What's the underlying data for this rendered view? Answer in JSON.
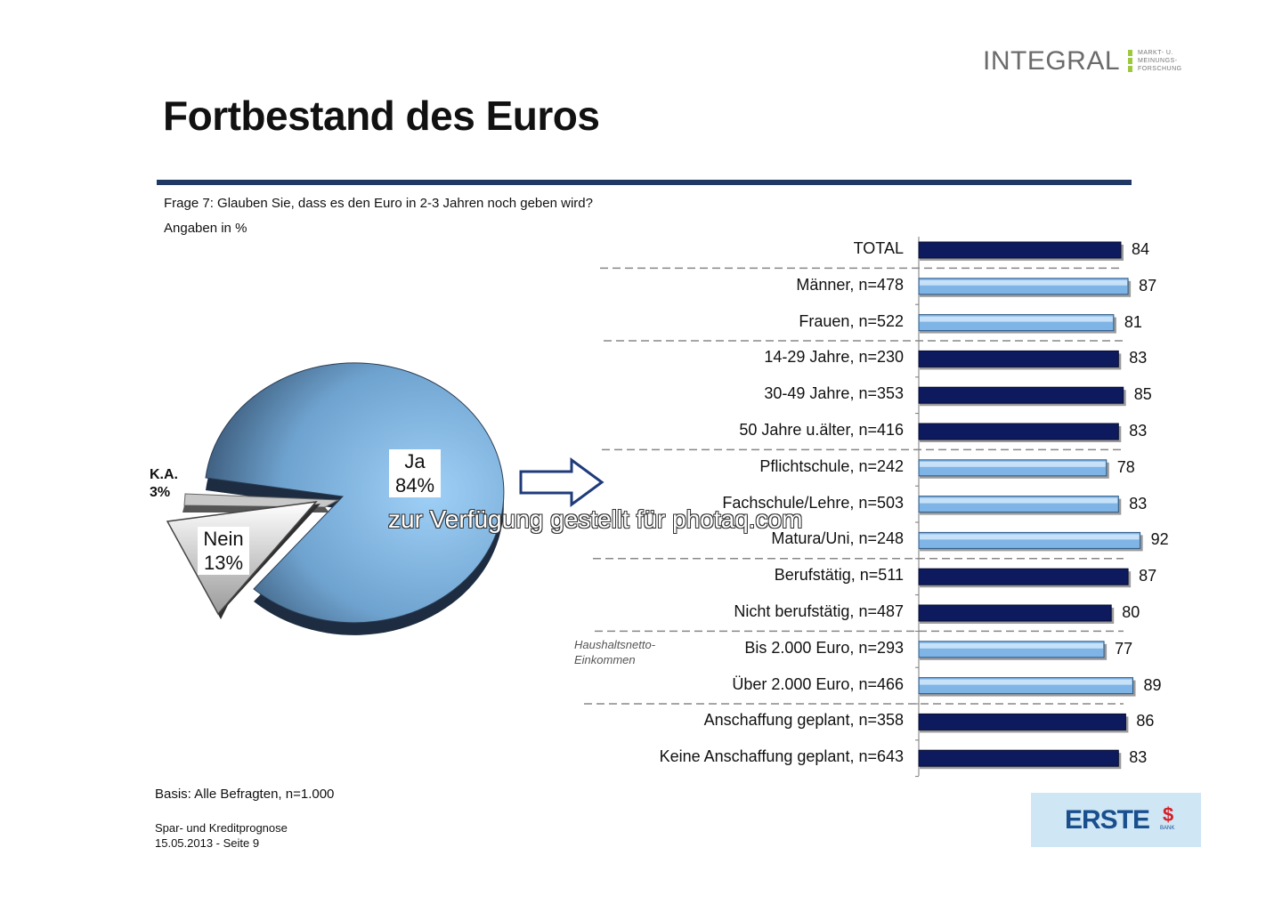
{
  "header": {
    "title": "Fortbestand des Euros",
    "logo_word": "INTEGRAL",
    "logo_sub": [
      "MARKT- U.",
      "MEINUNGS-",
      "FORSCHUNG"
    ]
  },
  "question": "Frage 7: Glauben Sie, dass es den Euro in 2-3 Jahren noch geben wird?",
  "unit_note": "Angaben in %",
  "footer": {
    "basis": "Basis: Alle Befragten, n=1.000",
    "source_line1": "Spar- und Kreditprognose",
    "source_line2": "15.05.2013 - Seite 9",
    "erste_logo": "ERSTE",
    "erste_sub": "BANK"
  },
  "watermark": "zur Verfügung gestellt für photaq.com",
  "side_note": [
    "Haushaltsnetto-",
    "Einkommen"
  ],
  "colors": {
    "dark_bar": "#0d1b5e",
    "light_bar": "#7fb4e6",
    "rule": "#1f3864",
    "pie_main": "#8ec3ee"
  },
  "chart_data": [
    {
      "type": "pie",
      "slices": [
        {
          "label": "Ja",
          "value": 84,
          "text": "84%"
        },
        {
          "label": "Nein",
          "value": 13,
          "text": "13%"
        },
        {
          "label": "K.A.",
          "value": 3,
          "text": "3%"
        }
      ]
    },
    {
      "type": "bar",
      "orientation": "horizontal",
      "categories": [
        "TOTAL",
        "Männer, n=478",
        "Frauen, n=522",
        "14-29 Jahre, n=230",
        "30-49 Jahre, n=353",
        "50 Jahre u.älter, n=416",
        "Pflichtschule, n=242",
        "Fachschule/Lehre, n=503",
        "Matura/Uni, n=248",
        "Berufstätig, n=511",
        "Nicht berufstätig, n=487",
        "Bis 2.000 Euro, n=293",
        "Über 2.000 Euro, n=466",
        "Anschaffung geplant, n=358",
        "Keine Anschaffung geplant, n=643"
      ],
      "values": [
        84,
        87,
        81,
        83,
        85,
        83,
        78,
        83,
        92,
        87,
        80,
        77,
        89,
        86,
        83
      ],
      "styles": [
        "dark",
        "light",
        "light",
        "dark",
        "dark",
        "dark",
        "light",
        "light",
        "light",
        "dark",
        "dark",
        "light",
        "light",
        "dark",
        "dark"
      ],
      "group_separators_after": [
        0,
        2,
        5,
        8,
        10,
        12
      ]
    }
  ]
}
